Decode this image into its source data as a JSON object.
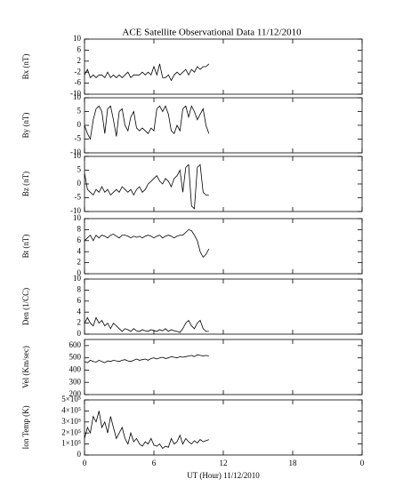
{
  "title": "ACE Satellite Observational Data   11/12/2010",
  "x_axis": {
    "xlim": [
      0,
      24
    ],
    "xticks": [
      0,
      6,
      12,
      18,
      {
        "value": 24,
        "label": "0"
      }
    ],
    "xlabel": "UT (Hour)  11/12/2010",
    "x": [
      0,
      0.25,
      0.5,
      0.75,
      1,
      1.25,
      1.5,
      1.75,
      2,
      2.25,
      2.5,
      2.75,
      3,
      3.25,
      3.5,
      3.75,
      4,
      4.25,
      4.5,
      4.75,
      5,
      5.25,
      5.5,
      5.75,
      6,
      6.25,
      6.5,
      6.75,
      7,
      7.25,
      7.5,
      7.75,
      8,
      8.25,
      8.5,
      8.75,
      9,
      9.25,
      9.5,
      9.75,
      10,
      10.25,
      10.5,
      10.75
    ]
  },
  "chart_data": [
    {
      "type": "line",
      "ylabel": "Bx (nT)",
      "ylim": [
        -10,
        10
      ],
      "yticks": [
        -10,
        -6,
        -2,
        2,
        6,
        10
      ],
      "color": "#000000",
      "values": [
        -3,
        -1,
        -4,
        -3,
        -4,
        -3,
        -3,
        -4,
        -2,
        -4,
        -3,
        -4,
        -3,
        -4,
        -3,
        -2,
        -4,
        -3,
        -3,
        -3,
        -2,
        -3,
        -2,
        -3,
        0,
        -3,
        1,
        -4,
        -4,
        -3,
        -5,
        -3,
        -2,
        -3,
        -2,
        -1,
        -3,
        -1,
        -2,
        0,
        -1,
        0,
        0,
        1
      ]
    },
    {
      "type": "line",
      "ylabel": "By (nT)",
      "ylim": [
        -10,
        10
      ],
      "yticks": [
        -10,
        -5,
        0,
        5,
        10
      ],
      "color": "#000000",
      "values": [
        0,
        -3,
        -5,
        2,
        6,
        7,
        5,
        -3,
        6,
        7,
        2,
        -4,
        5,
        6,
        0,
        -2,
        3,
        5,
        -1,
        -2,
        -1,
        -2,
        -3,
        -1,
        -2,
        6,
        7,
        5,
        7,
        4,
        -2,
        -3,
        0,
        -2,
        6,
        7,
        3,
        7,
        5,
        2,
        4,
        6,
        0,
        -3
      ]
    },
    {
      "type": "line",
      "ylabel": "Bz (nT)",
      "ylim": [
        -10,
        10
      ],
      "yticks": [
        -10,
        -5,
        0,
        5,
        10
      ],
      "color": "#000000",
      "values": [
        4,
        -2,
        -3,
        -4,
        -2,
        -3,
        -1,
        -3,
        -2,
        -4,
        -3,
        -2,
        -3,
        -1,
        -2,
        -3,
        -2,
        -4,
        -2,
        -1,
        -3,
        -2,
        0,
        1,
        2,
        3,
        1,
        0,
        2,
        1,
        -1,
        2,
        3,
        5,
        -3,
        6,
        7,
        -8,
        -9,
        6,
        7,
        -3,
        -4,
        -4
      ]
    },
    {
      "type": "line",
      "ylabel": "Bt (nT)",
      "ylim": [
        0,
        10
      ],
      "yticks": [
        0,
        2,
        4,
        6,
        8,
        10
      ],
      "color": "#000000",
      "values": [
        6,
        6.5,
        7,
        6,
        7,
        6.5,
        7,
        6.8,
        6.5,
        7,
        7.2,
        6.8,
        6.5,
        7,
        7,
        6.8,
        6.5,
        6.8,
        6.6,
        6.8,
        6.5,
        6.8,
        7,
        6.8,
        6.5,
        6.8,
        7,
        6.5,
        6.8,
        7,
        6.8,
        6.5,
        6.8,
        7,
        7,
        7.5,
        8,
        7.8,
        7,
        6,
        4,
        3,
        3.5,
        4.5
      ]
    },
    {
      "type": "line",
      "ylabel": "Den (1/CC)",
      "ylim": [
        0,
        10
      ],
      "yticks": [
        0,
        2,
        4,
        6,
        8,
        10
      ],
      "color": "#000000",
      "values": [
        2,
        3,
        2,
        1.5,
        3,
        2,
        2.5,
        1.5,
        2,
        1,
        2,
        1.5,
        1,
        0.5,
        1,
        0.8,
        0.5,
        1,
        0.6,
        0.5,
        0.8,
        0.6,
        0.5,
        0.8,
        0.6,
        0.5,
        0.8,
        0.6,
        1,
        0.5,
        0.8,
        0.6,
        0.5,
        0.3,
        1,
        2,
        2.5,
        1.5,
        1,
        2,
        2.5,
        1,
        0.5,
        0.5
      ]
    },
    {
      "type": "line",
      "ylabel": "Vel (Km/sec)",
      "ylim": [
        200,
        650
      ],
      "yticks": [
        200,
        300,
        400,
        500,
        600
      ],
      "color": "#000000",
      "values": [
        470,
        460,
        480,
        470,
        465,
        480,
        470,
        460,
        475,
        470,
        480,
        475,
        470,
        480,
        485,
        475,
        470,
        480,
        490,
        480,
        485,
        490,
        480,
        495,
        500,
        490,
        500,
        505,
        495,
        500,
        510,
        505,
        500,
        510,
        505,
        510,
        515,
        520,
        510,
        525,
        520,
        515,
        520,
        515
      ]
    },
    {
      "type": "line",
      "ylabel": "Ion Temp (K)",
      "ylim": [
        0,
        500000
      ],
      "color": "#000000",
      "yticks": [
        0,
        {
          "value": 100000,
          "label": "1×10⁵"
        },
        {
          "value": 200000,
          "label": "2×10⁵"
        },
        {
          "value": 300000,
          "label": "3×10⁵"
        },
        {
          "value": 400000,
          "label": "4×10⁵"
        },
        {
          "value": 500000,
          "label": "5×10⁵"
        }
      ],
      "values": [
        150000,
        250000,
        200000,
        350000,
        300000,
        400000,
        250000,
        300000,
        200000,
        350000,
        250000,
        150000,
        200000,
        250000,
        150000,
        100000,
        200000,
        120000,
        150000,
        100000,
        80000,
        120000,
        100000,
        150000,
        90000,
        80000,
        100000,
        60000,
        80000,
        70000,
        150000,
        100000,
        120000,
        180000,
        100000,
        150000,
        120000,
        100000,
        130000,
        110000,
        140000,
        120000,
        130000,
        140000
      ]
    }
  ]
}
